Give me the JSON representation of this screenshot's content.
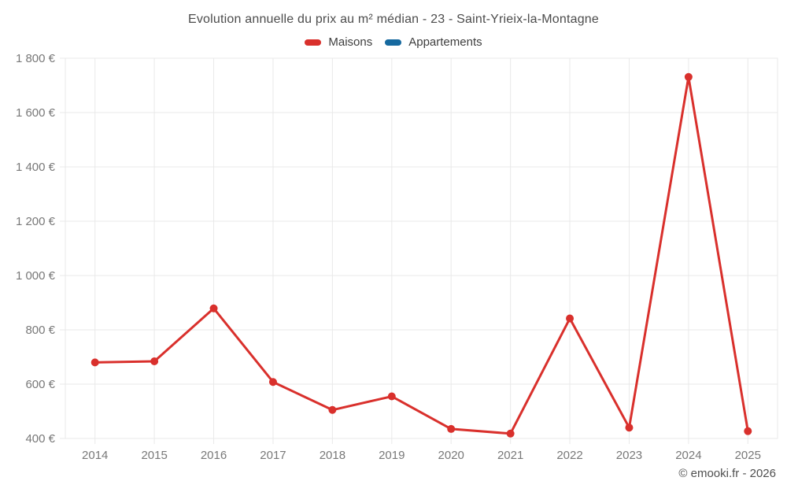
{
  "page": {
    "title": "Evolution annuelle du prix au m² médian - 23 - Saint-Yrieix-la-Montagne",
    "watermark": "© emooki.fr - 2026"
  },
  "legend": {
    "items": [
      {
        "label": "Maisons",
        "color": "#d9302c"
      },
      {
        "label": "Appartements",
        "color": "#16699f"
      }
    ]
  },
  "chart_data": {
    "type": "line",
    "title": "Evolution annuelle du prix au m² médian - 23 - Saint-Yrieix-la-Montagne",
    "x": [
      2014,
      2015,
      2016,
      2017,
      2018,
      2019,
      2020,
      2021,
      2022,
      2023,
      2024,
      2025
    ],
    "series": [
      {
        "name": "Maisons",
        "color": "#d9302c",
        "values": [
          680,
          684,
          879,
          608,
          505,
          555,
          435,
          418,
          842,
          440,
          1731,
          427
        ]
      },
      {
        "name": "Appartements",
        "color": "#16699f",
        "values": []
      }
    ],
    "ylim": [
      400,
      1800
    ],
    "y_ticks": [
      400,
      600,
      800,
      1000,
      1200,
      1400,
      1600,
      1800
    ],
    "y_tick_labels": [
      "400 €",
      "600 €",
      "800 €",
      "1 000 €",
      "1 200 €",
      "1 400 €",
      "1 600 €",
      "1 800 €"
    ],
    "grid": true,
    "legend_position": "top",
    "grid_color": "#e9e9e9",
    "tick_color": "#787878",
    "currency_suffix": " €"
  }
}
